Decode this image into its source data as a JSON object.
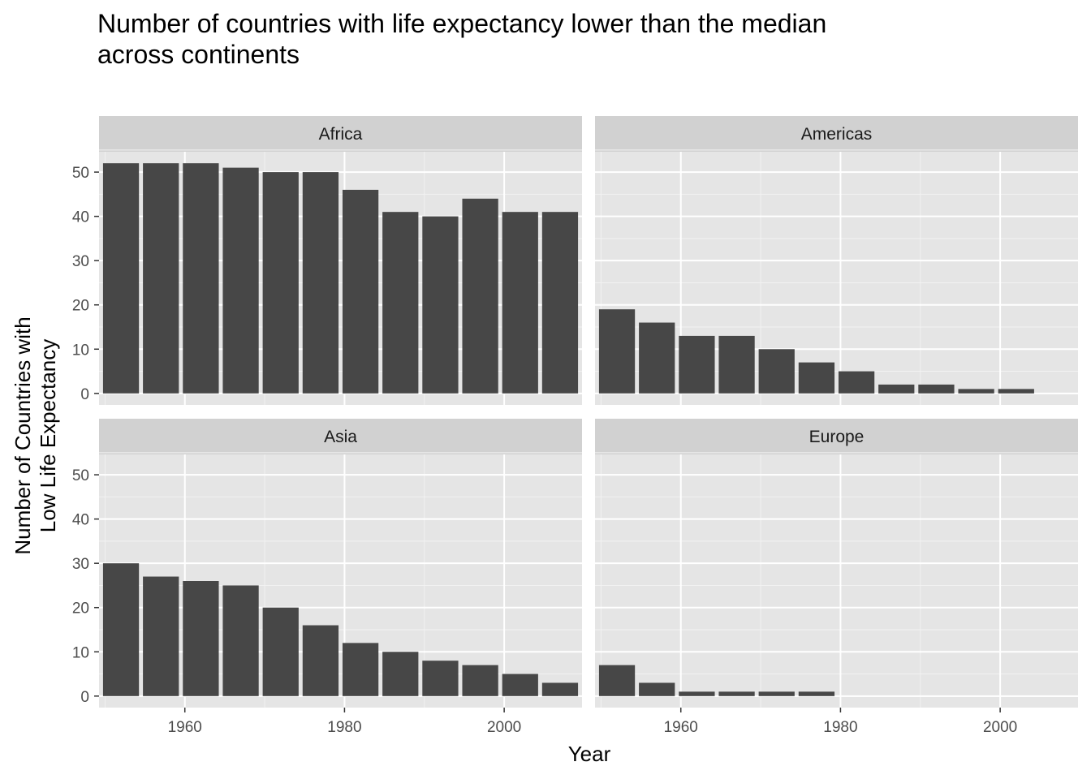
{
  "chart_data": {
    "type": "bar",
    "title": "Number of countries with life expectancy lower than the median across continents",
    "title_lines": [
      "Number of countries with life expectancy lower than the median",
      "across continents"
    ],
    "xlabel": "Year",
    "ylabel": "Number of Countries with Low Life Expectancy",
    "ylabel_lines": [
      "Number of Countries with",
      "Low Life Expectancy"
    ],
    "x": [
      1952,
      1957,
      1962,
      1967,
      1972,
      1977,
      1982,
      1987,
      1992,
      1997,
      2002,
      2007
    ],
    "x_ticks": [
      1960,
      1980,
      2000
    ],
    "y_ticks": [
      0,
      10,
      20,
      30,
      40,
      50
    ],
    "xlim": [
      1949.25,
      2009.75
    ],
    "ylim": [
      -2.6,
      54.6
    ],
    "grid": true,
    "facet_layout": "2x2",
    "bar_color": "#474747",
    "panel_background": "#e5e5e5",
    "strip_background": "#d1d1d1",
    "facets": [
      {
        "name": "Africa",
        "values": [
          52,
          52,
          52,
          51,
          50,
          50,
          46,
          41,
          40,
          44,
          41,
          41
        ]
      },
      {
        "name": "Americas",
        "values": [
          19,
          16,
          13,
          13,
          10,
          7,
          5,
          2,
          2,
          1,
          1,
          null
        ]
      },
      {
        "name": "Asia",
        "values": [
          30,
          27,
          26,
          25,
          20,
          16,
          12,
          10,
          8,
          7,
          5,
          3
        ]
      },
      {
        "name": "Europe",
        "values": [
          7,
          3,
          1,
          1,
          1,
          1,
          null,
          null,
          null,
          null,
          null,
          null
        ]
      }
    ]
  }
}
